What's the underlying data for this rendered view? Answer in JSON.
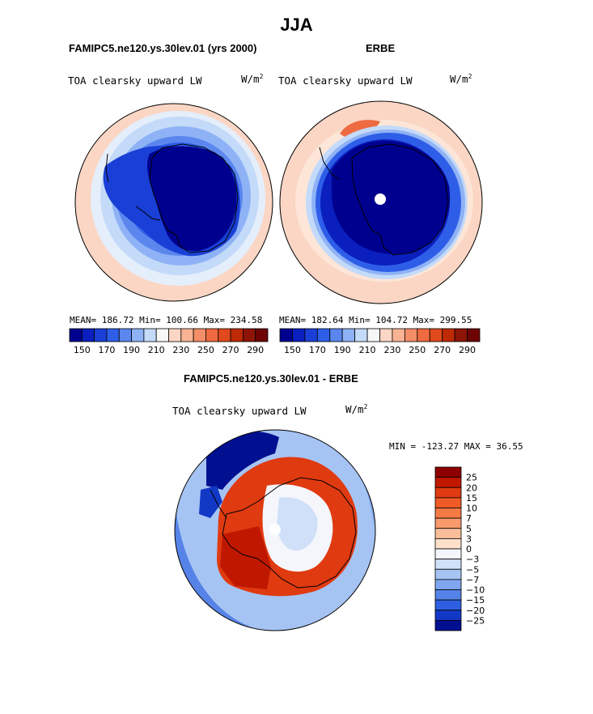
{
  "figure": {
    "season": "JJA",
    "model_label": "FAMIPC5.ne120.ys.30lev.01 (yrs 2000)",
    "obs_label": "ERBE",
    "diff_title": "FAMIPC5.ne120.ys.30lev.01 - ERBE"
  },
  "panels": {
    "model": {
      "variable": "TOA clearsky upward LW",
      "units": "W/m",
      "units_exp": "2",
      "stats": "MEAN= 186.72   Min= 100.66   Max= 234.58"
    },
    "obs": {
      "variable": "TOA clearsky upward LW",
      "units": "W/m",
      "units_exp": "2",
      "stats": "MEAN= 182.64   Min= 104.72   Max= 299.55"
    },
    "diff": {
      "variable": "TOA clearsky upward LW",
      "units": "W/m",
      "units_exp": "2",
      "stats": "MIN = -123.27  MAX =  36.55"
    }
  },
  "chart_data": [
    {
      "type": "heatmap",
      "projection": "south-polar-stereographic",
      "title": "FAMIPC5.ne120.ys.30lev.01 (yrs 2000)",
      "variable": "TOA clearsky upward LW",
      "units": "W/m^2",
      "mean": 186.72,
      "min": 100.66,
      "max": 234.58,
      "colorbar_levels": [
        150,
        160,
        170,
        180,
        190,
        200,
        210,
        220,
        230,
        240,
        250,
        260,
        270,
        280,
        290
      ],
      "colorbar_tick_labels": [
        "150",
        "170",
        "190",
        "210",
        "230",
        "250",
        "270",
        "290"
      ],
      "colorbar_colors": [
        "#00008f",
        "#0a1fbd",
        "#1a3fd6",
        "#2e5ee8",
        "#5a86ee",
        "#8eb2f5",
        "#c4daf9",
        "#f7f7f7",
        "#fbd6c4",
        "#f7b394",
        "#f48e68",
        "#ee6a40",
        "#e04a1c",
        "#bf2a06",
        "#8e1408",
        "#6e0303"
      ]
    },
    {
      "type": "heatmap",
      "projection": "south-polar-stereographic",
      "title": "ERBE",
      "variable": "TOA clearsky upward LW",
      "units": "W/m^2",
      "mean": 182.64,
      "min": 104.72,
      "max": 299.55,
      "colorbar_levels": [
        150,
        160,
        170,
        180,
        190,
        200,
        210,
        220,
        230,
        240,
        250,
        260,
        270,
        280,
        290
      ],
      "colorbar_tick_labels": [
        "150",
        "170",
        "190",
        "210",
        "230",
        "250",
        "270",
        "290"
      ],
      "colorbar_colors": [
        "#00008f",
        "#0a1fbd",
        "#1a3fd6",
        "#2e5ee8",
        "#5a86ee",
        "#8eb2f5",
        "#c4daf9",
        "#f7f7f7",
        "#fbd6c4",
        "#f7b394",
        "#f48e68",
        "#ee6a40",
        "#e04a1c",
        "#bf2a06",
        "#8e1408",
        "#6e0303"
      ]
    },
    {
      "type": "heatmap",
      "projection": "south-polar-stereographic",
      "title": "FAMIPC5.ne120.ys.30lev.01 - ERBE",
      "variable": "TOA clearsky upward LW",
      "units": "W/m^2",
      "min": -123.27,
      "max": 36.55,
      "colorbar_orientation": "vertical",
      "colorbar_levels": [
        25,
        20,
        15,
        10,
        7,
        5,
        3,
        0,
        -3,
        -5,
        -7,
        -10,
        -15,
        -20,
        -25
      ],
      "colorbar_tick_labels": [
        "25",
        "20",
        "15",
        "10",
        "7",
        "5",
        "3",
        "0",
        "−3",
        "−5",
        "−7",
        "−10",
        "−15",
        "−20",
        "−25"
      ],
      "colorbar_colors": [
        "#8e0000",
        "#c01800",
        "#e03a10",
        "#f05a25",
        "#f47a44",
        "#f89a6c",
        "#fbbe9a",
        "#fde0cc",
        "#f4f6fb",
        "#cfe0f8",
        "#a6c4f3",
        "#7ea6ee",
        "#5683e7",
        "#2d5fe0",
        "#1238c6",
        "#001090"
      ]
    }
  ]
}
